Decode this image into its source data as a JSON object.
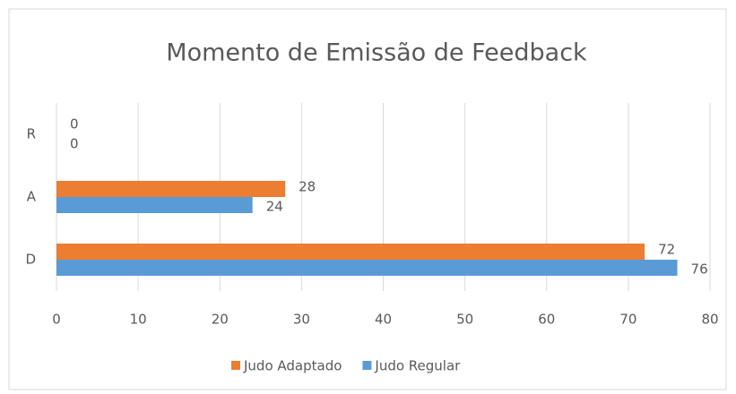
{
  "chart_data": {
    "type": "hbar",
    "title": "Momento de Emissão de Feedback",
    "categories": [
      "D",
      "A",
      "R"
    ],
    "series": [
      {
        "name": "Judo Adaptado",
        "color": "#ed7d31",
        "values": [
          72,
          28,
          0
        ]
      },
      {
        "name": "Judo Regular",
        "color": "#5b9bd5",
        "values": [
          76,
          24,
          0
        ]
      }
    ],
    "xlim": [
      0,
      80
    ],
    "xticks": [
      0,
      10,
      20,
      30,
      40,
      50,
      60,
      70,
      80
    ],
    "grid": true,
    "legend": "bottom"
  }
}
